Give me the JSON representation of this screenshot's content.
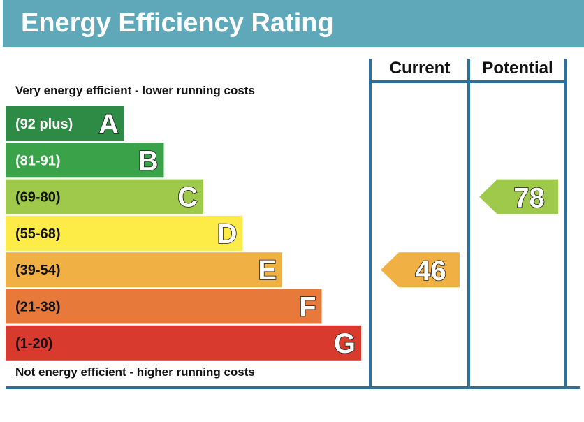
{
  "title": "Energy Efficiency Rating",
  "top_note": "Very energy efficient - lower running costs",
  "bottom_note": "Not energy efficient - higher running costs",
  "columns": {
    "current": "Current",
    "potential": "Potential"
  },
  "colors": {
    "header": "#5fa8ba",
    "frame": "#2d6f9e"
  },
  "chart_data": {
    "type": "bar",
    "title": "Energy Efficiency Rating",
    "bands": [
      {
        "letter": "A",
        "range": "(92 plus)",
        "color": "#2e8b45",
        "text_color": "#ffffff"
      },
      {
        "letter": "B",
        "range": "(81-91)",
        "color": "#3aa34a",
        "text_color": "#ffffff"
      },
      {
        "letter": "C",
        "range": "(69-80)",
        "color": "#9ec94a",
        "text_color": "#111111"
      },
      {
        "letter": "D",
        "range": "(55-68)",
        "color": "#fdeb47",
        "text_color": "#111111"
      },
      {
        "letter": "E",
        "range": "(39-54)",
        "color": "#f1b043",
        "text_color": "#111111"
      },
      {
        "letter": "F",
        "range": "(21-38)",
        "color": "#e7793a",
        "text_color": "#111111"
      },
      {
        "letter": "G",
        "range": "(1-20)",
        "color": "#d93a2e",
        "text_color": "#111111"
      }
    ],
    "current": {
      "value": 46,
      "band": "E"
    },
    "potential": {
      "value": 78,
      "band": "C"
    }
  }
}
